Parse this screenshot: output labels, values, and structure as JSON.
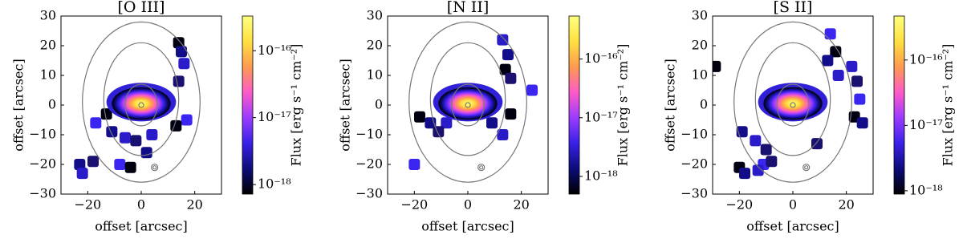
{
  "chart_data": [
    {
      "type": "image",
      "title": "[O III]",
      "xlabel": "offset [arcsec]",
      "ylabel": "offset [arcsec]",
      "xlim": [
        -30,
        30
      ],
      "ylim": [
        -30,
        30
      ],
      "xticks": [
        {
          "value": -20,
          "label": "−20"
        },
        0,
        20
      ],
      "yticks": [
        {
          "value": -30,
          "label": "−30"
        },
        {
          "value": -20,
          "label": "−20"
        },
        {
          "value": -10,
          "label": "−10"
        },
        0,
        10,
        20,
        30
      ],
      "colorbar": {
        "label": "Flux [erg s⁻¹ cm⁻²]",
        "scale": "log",
        "lim": [
          7.2e-19,
          3.3e-16
        ],
        "ticks": [
          {
            "value": 1e-16,
            "label": "10⁻¹⁶"
          },
          {
            "value": 1e-17,
            "label": "10⁻¹⁷"
          },
          {
            "value": 1e-18,
            "label": "10⁻¹⁸"
          }
        ],
        "colormap": [
          "#000000",
          "#0c0c7a",
          "#3a20e8",
          "#9a3cff",
          "#ff5ac8",
          "#ff9a50",
          "#ffe040",
          "#ffff80"
        ]
      }
    },
    {
      "type": "image",
      "title": "[N II]",
      "xlabel": "offset [arcsec]",
      "ylabel": "offset [arcsec]",
      "xlim": [
        -30,
        30
      ],
      "ylim": [
        -30,
        30
      ],
      "xticks": [
        {
          "value": -20,
          "label": "−20"
        },
        0,
        20
      ],
      "yticks": [
        {
          "value": -30,
          "label": "−30"
        },
        {
          "value": -20,
          "label": "−20"
        },
        {
          "value": -10,
          "label": "−10"
        },
        0,
        10,
        20,
        30
      ],
      "colorbar": {
        "label": "Flux [erg s⁻¹ cm⁻²]",
        "scale": "log",
        "lim": [
          5e-19,
          5.4e-16
        ],
        "ticks": [
          {
            "value": 1e-16,
            "label": "10⁻¹⁶"
          },
          {
            "value": 1e-17,
            "label": "10⁻¹⁷"
          },
          {
            "value": 1e-18,
            "label": "10⁻¹⁸"
          }
        ],
        "colormap": [
          "#000000",
          "#0c0c7a",
          "#3a20e8",
          "#9a3cff",
          "#ff5ac8",
          "#ff9a50",
          "#ffe040",
          "#ffff80"
        ]
      }
    },
    {
      "type": "image",
      "title": "[S II]",
      "xlabel": "offset [arcsec]",
      "ylabel": "offset [arcsec]",
      "xlim": [
        -30,
        30
      ],
      "ylim": [
        -30,
        30
      ],
      "xticks": [
        {
          "value": -20,
          "label": "−20"
        },
        0,
        20
      ],
      "yticks": [
        {
          "value": -30,
          "label": "−30"
        },
        {
          "value": -20,
          "label": "−20"
        },
        {
          "value": -10,
          "label": "−10"
        },
        0,
        10,
        20,
        30
      ],
      "colorbar": {
        "label": "Flux [erg s⁻¹ cm⁻²]",
        "scale": "log",
        "lim": [
          8.9e-19,
          4.7e-16
        ],
        "ticks": [
          {
            "value": 1e-16,
            "label": "10⁻¹⁶"
          },
          {
            "value": 1e-17,
            "label": "10⁻¹⁷"
          },
          {
            "value": 1e-18,
            "label": "10⁻¹⁸"
          }
        ],
        "colormap": [
          "#000000",
          "#0c0c7a",
          "#3a20e8",
          "#9a3cff",
          "#ff5ac8",
          "#ff9a50",
          "#ffe040",
          "#ffff80"
        ]
      }
    }
  ]
}
